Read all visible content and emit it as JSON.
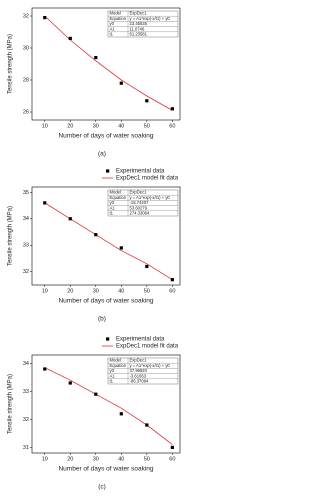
{
  "chart_data": [
    {
      "type": "line",
      "caption": "(a)",
      "x_label": "Number of days of water soaking",
      "y_label": "Tensile strength (MPa)",
      "x": [
        10,
        20,
        30,
        40,
        50,
        60
      ],
      "xlim": [
        5,
        63
      ],
      "xticks": [
        10,
        20,
        30,
        40,
        50,
        60
      ],
      "ylim": [
        25.5,
        32.5
      ],
      "yticks": [
        26,
        28,
        30,
        32
      ],
      "series": [
        {
          "color": "#000000",
          "marker": "square",
          "values": [
            31.9,
            30.6,
            29.4,
            27.8,
            26.7,
            26.2
          ]
        },
        {
          "color": "#e03030",
          "marker": "none",
          "values": [
            32.0,
            30.5,
            29.2,
            28.0,
            27.0,
            26.1
          ]
        }
      ],
      "fit_table": [
        [
          "Model",
          "ExpDec1"
        ],
        [
          "Equation",
          "y = A1*exp(-x/t1) + y0"
        ],
        [
          "y0",
          "23.45635"
        ],
        [
          "A1",
          "11.0746"
        ],
        [
          "t1",
          "61.23581"
        ]
      ]
    },
    {
      "type": "line",
      "caption": "(b)",
      "x_label": "Number of days of water soaking",
      "y_label": "Tensile strength (MPa)",
      "x": [
        10,
        20,
        30,
        40,
        50,
        60
      ],
      "xlim": [
        5,
        63
      ],
      "xticks": [
        10,
        20,
        30,
        40,
        50,
        60
      ],
      "ylim": [
        31.5,
        35.2
      ],
      "yticks": [
        32,
        33,
        34,
        35
      ],
      "series": [
        {
          "name": "Experimental data",
          "color": "#000000",
          "marker": "square",
          "values": [
            34.6,
            34.0,
            33.4,
            32.9,
            32.2,
            31.7
          ]
        },
        {
          "name": "ExpDec1 model fit data",
          "color": "#e03030",
          "marker": "none",
          "values": [
            34.6,
            34.0,
            33.4,
            32.8,
            32.3,
            31.7
          ]
        }
      ],
      "fit_table": [
        [
          "Model",
          "ExpDec1"
        ],
        [
          "Equation",
          "y = A1*exp(-x/t1) + y0"
        ],
        [
          "y0",
          "-18.74207"
        ],
        [
          "A1",
          "53.60279"
        ],
        [
          "t1",
          "274.33064"
        ]
      ]
    },
    {
      "type": "line",
      "caption": "(c)",
      "x_label": "Number of days of water soaking",
      "y_label": "Tensile strength (MPa)",
      "x": [
        10,
        20,
        30,
        40,
        50,
        60
      ],
      "xlim": [
        5,
        63
      ],
      "xticks": [
        10,
        20,
        30,
        40,
        50,
        60
      ],
      "ylim": [
        30.8,
        34.3
      ],
      "yticks": [
        31,
        32,
        33,
        34
      ],
      "series": [
        {
          "name": "Experimental data",
          "color": "#000000",
          "marker": "square",
          "values": [
            33.8,
            33.3,
            32.9,
            32.2,
            31.8,
            31.0
          ]
        },
        {
          "name": "ExpDec1 model fit data",
          "color": "#e03030",
          "marker": "none",
          "values": [
            33.85,
            33.4,
            32.9,
            32.4,
            31.8,
            31.1
          ]
        }
      ],
      "fit_table": [
        [
          "Model",
          "ExpDec1"
        ],
        [
          "Equation",
          "y = A1*exp(-x/t1) + y0"
        ],
        [
          "y0",
          "37.96920"
        ],
        [
          "A1",
          "-3.61063"
        ],
        [
          "t1",
          "-86.37094"
        ]
      ]
    }
  ]
}
